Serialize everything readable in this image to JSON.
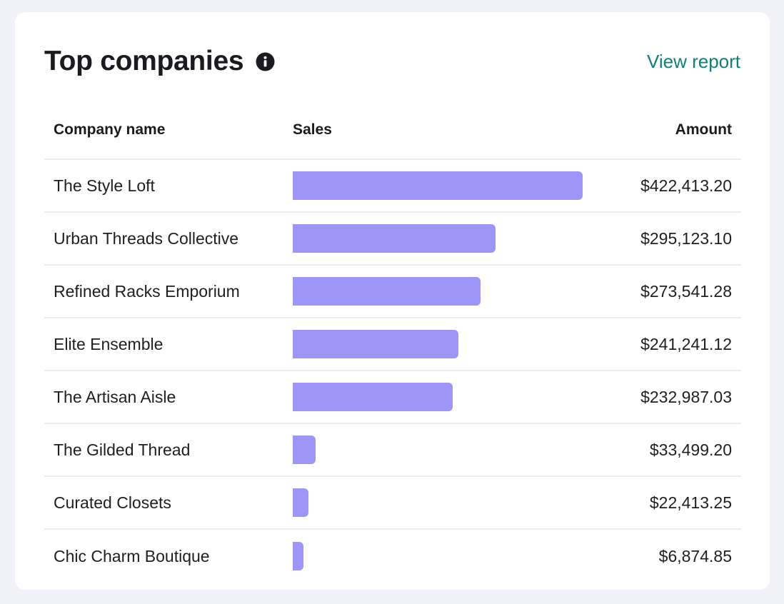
{
  "card": {
    "title": "Top companies",
    "view_report_label": "View report",
    "info_icon": "info-icon"
  },
  "table": {
    "headers": {
      "company": "Company name",
      "sales": "Sales",
      "amount": "Amount"
    },
    "max_amount": 422413.2,
    "rows": [
      {
        "company": "The Style Loft",
        "amount": "$422,413.20",
        "value": 422413.2
      },
      {
        "company": "Urban Threads Collective",
        "amount": "$295,123.10",
        "value": 295123.1
      },
      {
        "company": "Refined Racks Emporium",
        "amount": "$273,541.28",
        "value": 273541.28
      },
      {
        "company": "Elite Ensemble",
        "amount": "$241,241.12",
        "value": 241241.12
      },
      {
        "company": "The Artisan Aisle",
        "amount": "$232,987.03",
        "value": 232987.03
      },
      {
        "company": "The Gilded Thread",
        "amount": "$33,499.20",
        "value": 33499.2
      },
      {
        "company": "Curated Closets",
        "amount": "$22,413.25",
        "value": 22413.25
      },
      {
        "company": "Chic Charm Boutique",
        "amount": "$6,874.85",
        "value": 6874.85
      }
    ]
  },
  "colors": {
    "bar": "#9d96f8",
    "link": "#0f7f7a",
    "background": "#f1f2f7"
  }
}
